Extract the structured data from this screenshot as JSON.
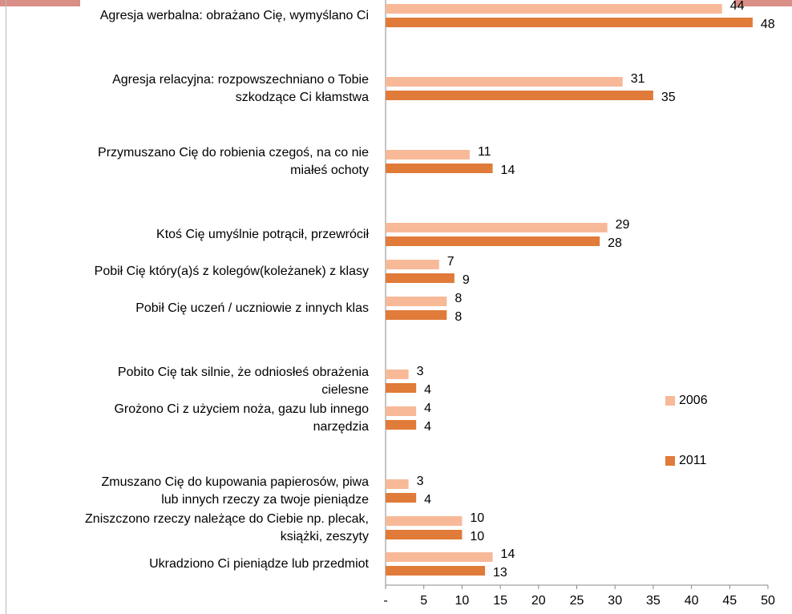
{
  "chart_data": {
    "type": "bar",
    "orientation": "horizontal",
    "categories": [
      "Agresja werbalna: obrażano Cię, wymyślano Ci",
      "Agresja relacyjna: rozpowszechniano o Tobie\nszkodzące Ci kłamstwa",
      "Przymuszano Cię do robienia czegoś, na co nie\nmiałeś ochoty",
      "Ktoś Cię umyślnie potrącił, przewrócił",
      "Pobił Cię który(a)ś z kolegów(koleżanek) z klasy",
      "Pobił Cię uczeń / uczniowie z innych klas",
      "Pobito Cię tak silnie, że odniosłeś obrażenia\ncielesne",
      "Grożono Ci z użyciem noża, gazu lub innego\nnarzędzia",
      "Zmuszano Cię do kupowania papierosów, piwa\nlub innych rzeczy za twoje pieniądze",
      "Zniszczono rzeczy należące do Ciebie np. plecak,\nksiążki, zeszyty",
      "Ukradziono Ci pieniądze lub przedmiot"
    ],
    "series": [
      {
        "name": "2006",
        "color": "#f8b998",
        "values": [
          44,
          31,
          11,
          29,
          7,
          8,
          3,
          4,
          3,
          10,
          14
        ]
      },
      {
        "name": "2011",
        "color": "#e07b39",
        "values": [
          48,
          35,
          14,
          28,
          9,
          8,
          4,
          4,
          4,
          10,
          13
        ]
      }
    ],
    "xlim": [
      0,
      50
    ],
    "xticks": [
      {
        "value": 0,
        "label": "-"
      },
      5,
      10,
      15,
      20,
      25,
      30,
      35,
      40,
      45,
      50
    ]
  }
}
